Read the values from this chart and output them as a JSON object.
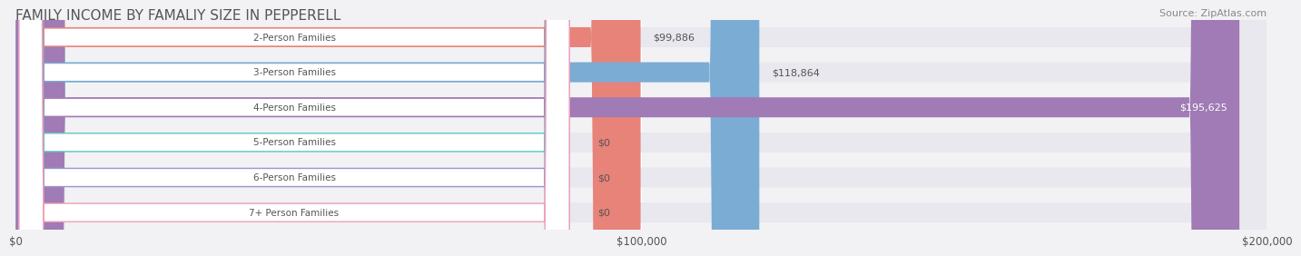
{
  "title": "FAMILY INCOME BY FAMALIY SIZE IN PEPPERELL",
  "source": "Source: ZipAtlas.com",
  "categories": [
    "2-Person Families",
    "3-Person Families",
    "4-Person Families",
    "5-Person Families",
    "6-Person Families",
    "7+ Person Families"
  ],
  "values": [
    99886,
    118864,
    195625,
    0,
    0,
    0
  ],
  "bar_colors": [
    "#E8837A",
    "#7BACD4",
    "#A07BB5",
    "#5EC8C0",
    "#9999CC",
    "#F0A0B8"
  ],
  "label_bg_colors": [
    "#FFFFFF",
    "#FFFFFF",
    "#FFFFFF",
    "#FFFFFF",
    "#FFFFFF",
    "#FFFFFF"
  ],
  "xlim": [
    0,
    200000
  ],
  "xticks": [
    0,
    100000,
    200000
  ],
  "xtick_labels": [
    "$0",
    "$100,000",
    "$200,000"
  ],
  "bar_height": 0.55,
  "background_color": "#F2F2F5",
  "bar_bg_color": "#E8E8EE",
  "value_label_color": "#555555",
  "title_color": "#555555",
  "source_color": "#888888",
  "label_text_color": "#555555",
  "grid_color": "#FFFFFF",
  "title_fontsize": 11,
  "source_fontsize": 8,
  "tick_fontsize": 8.5,
  "bar_label_fontsize": 7.5,
  "value_fontsize": 8
}
